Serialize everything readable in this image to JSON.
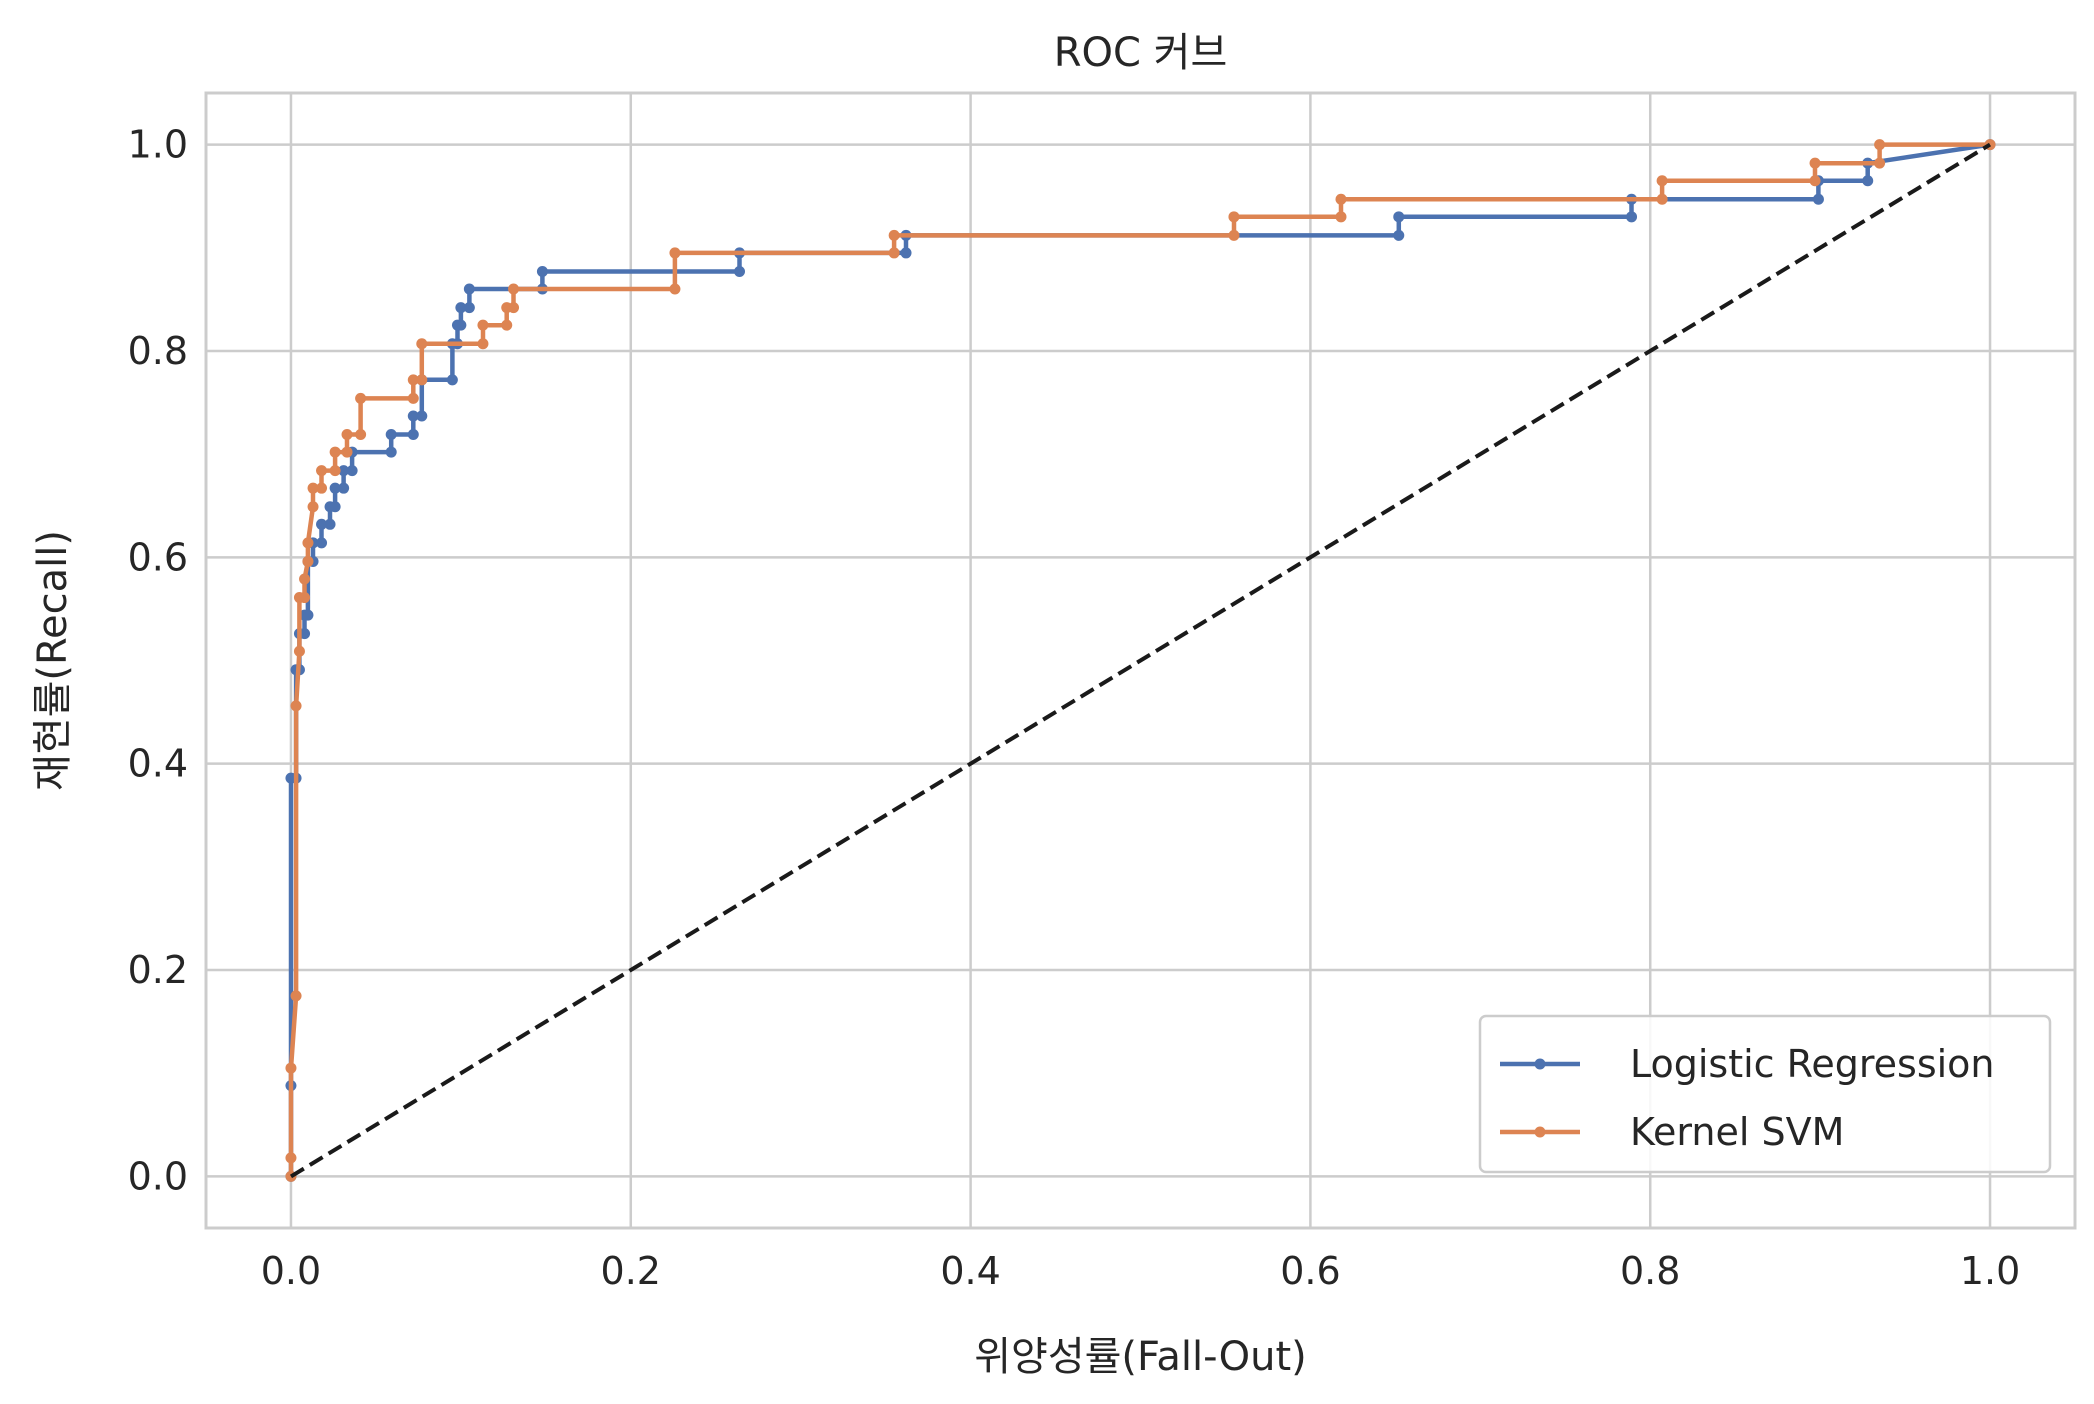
{
  "chart_data": {
    "type": "line",
    "title": "ROC 커브",
    "xlabel": "위양성률(Fall-Out)",
    "ylabel": "재현률(Recall)",
    "xlim": [
      -0.05,
      1.05
    ],
    "ylim": [
      -0.05,
      1.05
    ],
    "xticks": [
      0.0,
      0.2,
      0.4,
      0.6,
      0.8,
      1.0
    ],
    "yticks": [
      0.0,
      0.2,
      0.4,
      0.6,
      0.8,
      1.0
    ],
    "xtick_labels": [
      "0.0",
      "0.2",
      "0.4",
      "0.6",
      "0.8",
      "1.0"
    ],
    "ytick_labels": [
      "0.0",
      "0.2",
      "0.4",
      "0.6",
      "0.8",
      "1.0"
    ],
    "grid": true,
    "legend_position": "lower-right",
    "series": [
      {
        "name": "Logistic Regression",
        "color": "#4c72b0",
        "marker": "dot",
        "x": [
          0.0,
          0.0,
          0.0,
          0.003,
          0.003,
          0.005,
          0.005,
          0.008,
          0.008,
          0.01,
          0.01,
          0.013,
          0.013,
          0.018,
          0.018,
          0.023,
          0.023,
          0.026,
          0.026,
          0.031,
          0.031,
          0.036,
          0.036,
          0.059,
          0.059,
          0.072,
          0.072,
          0.077,
          0.077,
          0.095,
          0.095,
          0.098,
          0.098,
          0.1,
          0.1,
          0.105,
          0.105,
          0.148,
          0.148,
          0.264,
          0.264,
          0.362,
          0.362,
          0.652,
          0.652,
          0.789,
          0.789,
          0.899,
          0.899,
          0.928,
          0.928,
          1.0
        ],
        "y": [
          0.0,
          0.088,
          0.386,
          0.386,
          0.491,
          0.491,
          0.526,
          0.526,
          0.544,
          0.544,
          0.596,
          0.596,
          0.614,
          0.614,
          0.632,
          0.632,
          0.649,
          0.649,
          0.667,
          0.667,
          0.684,
          0.684,
          0.702,
          0.702,
          0.719,
          0.719,
          0.737,
          0.737,
          0.772,
          0.772,
          0.807,
          0.807,
          0.825,
          0.825,
          0.842,
          0.842,
          0.86,
          0.86,
          0.877,
          0.877,
          0.895,
          0.895,
          0.912,
          0.912,
          0.93,
          0.93,
          0.947,
          0.947,
          0.965,
          0.965,
          0.982,
          1.0
        ]
      },
      {
        "name": "Kernel SVM",
        "color": "#dd8452",
        "marker": "dot",
        "x": [
          0.0,
          0.0,
          0.0,
          0.003,
          0.003,
          0.005,
          0.005,
          0.008,
          0.008,
          0.01,
          0.01,
          0.013,
          0.013,
          0.018,
          0.018,
          0.026,
          0.026,
          0.033,
          0.033,
          0.041,
          0.041,
          0.072,
          0.072,
          0.077,
          0.077,
          0.113,
          0.113,
          0.127,
          0.127,
          0.131,
          0.131,
          0.226,
          0.226,
          0.355,
          0.355,
          0.555,
          0.555,
          0.618,
          0.618,
          0.807,
          0.807,
          0.897,
          0.897,
          0.935,
          0.935,
          1.0
        ],
        "y": [
          0.0,
          0.018,
          0.105,
          0.175,
          0.456,
          0.509,
          0.561,
          0.561,
          0.579,
          0.596,
          0.614,
          0.649,
          0.667,
          0.667,
          0.684,
          0.684,
          0.702,
          0.702,
          0.719,
          0.719,
          0.754,
          0.754,
          0.772,
          0.772,
          0.807,
          0.807,
          0.825,
          0.825,
          0.842,
          0.842,
          0.86,
          0.86,
          0.895,
          0.895,
          0.912,
          0.912,
          0.93,
          0.93,
          0.947,
          0.947,
          0.965,
          0.965,
          0.982,
          0.982,
          1.0,
          1.0
        ]
      },
      {
        "name": "",
        "color": "#1a1a1a",
        "style": "dashed",
        "x": [
          0.0,
          1.0
        ],
        "y": [
          0.0,
          1.0
        ]
      }
    ]
  }
}
